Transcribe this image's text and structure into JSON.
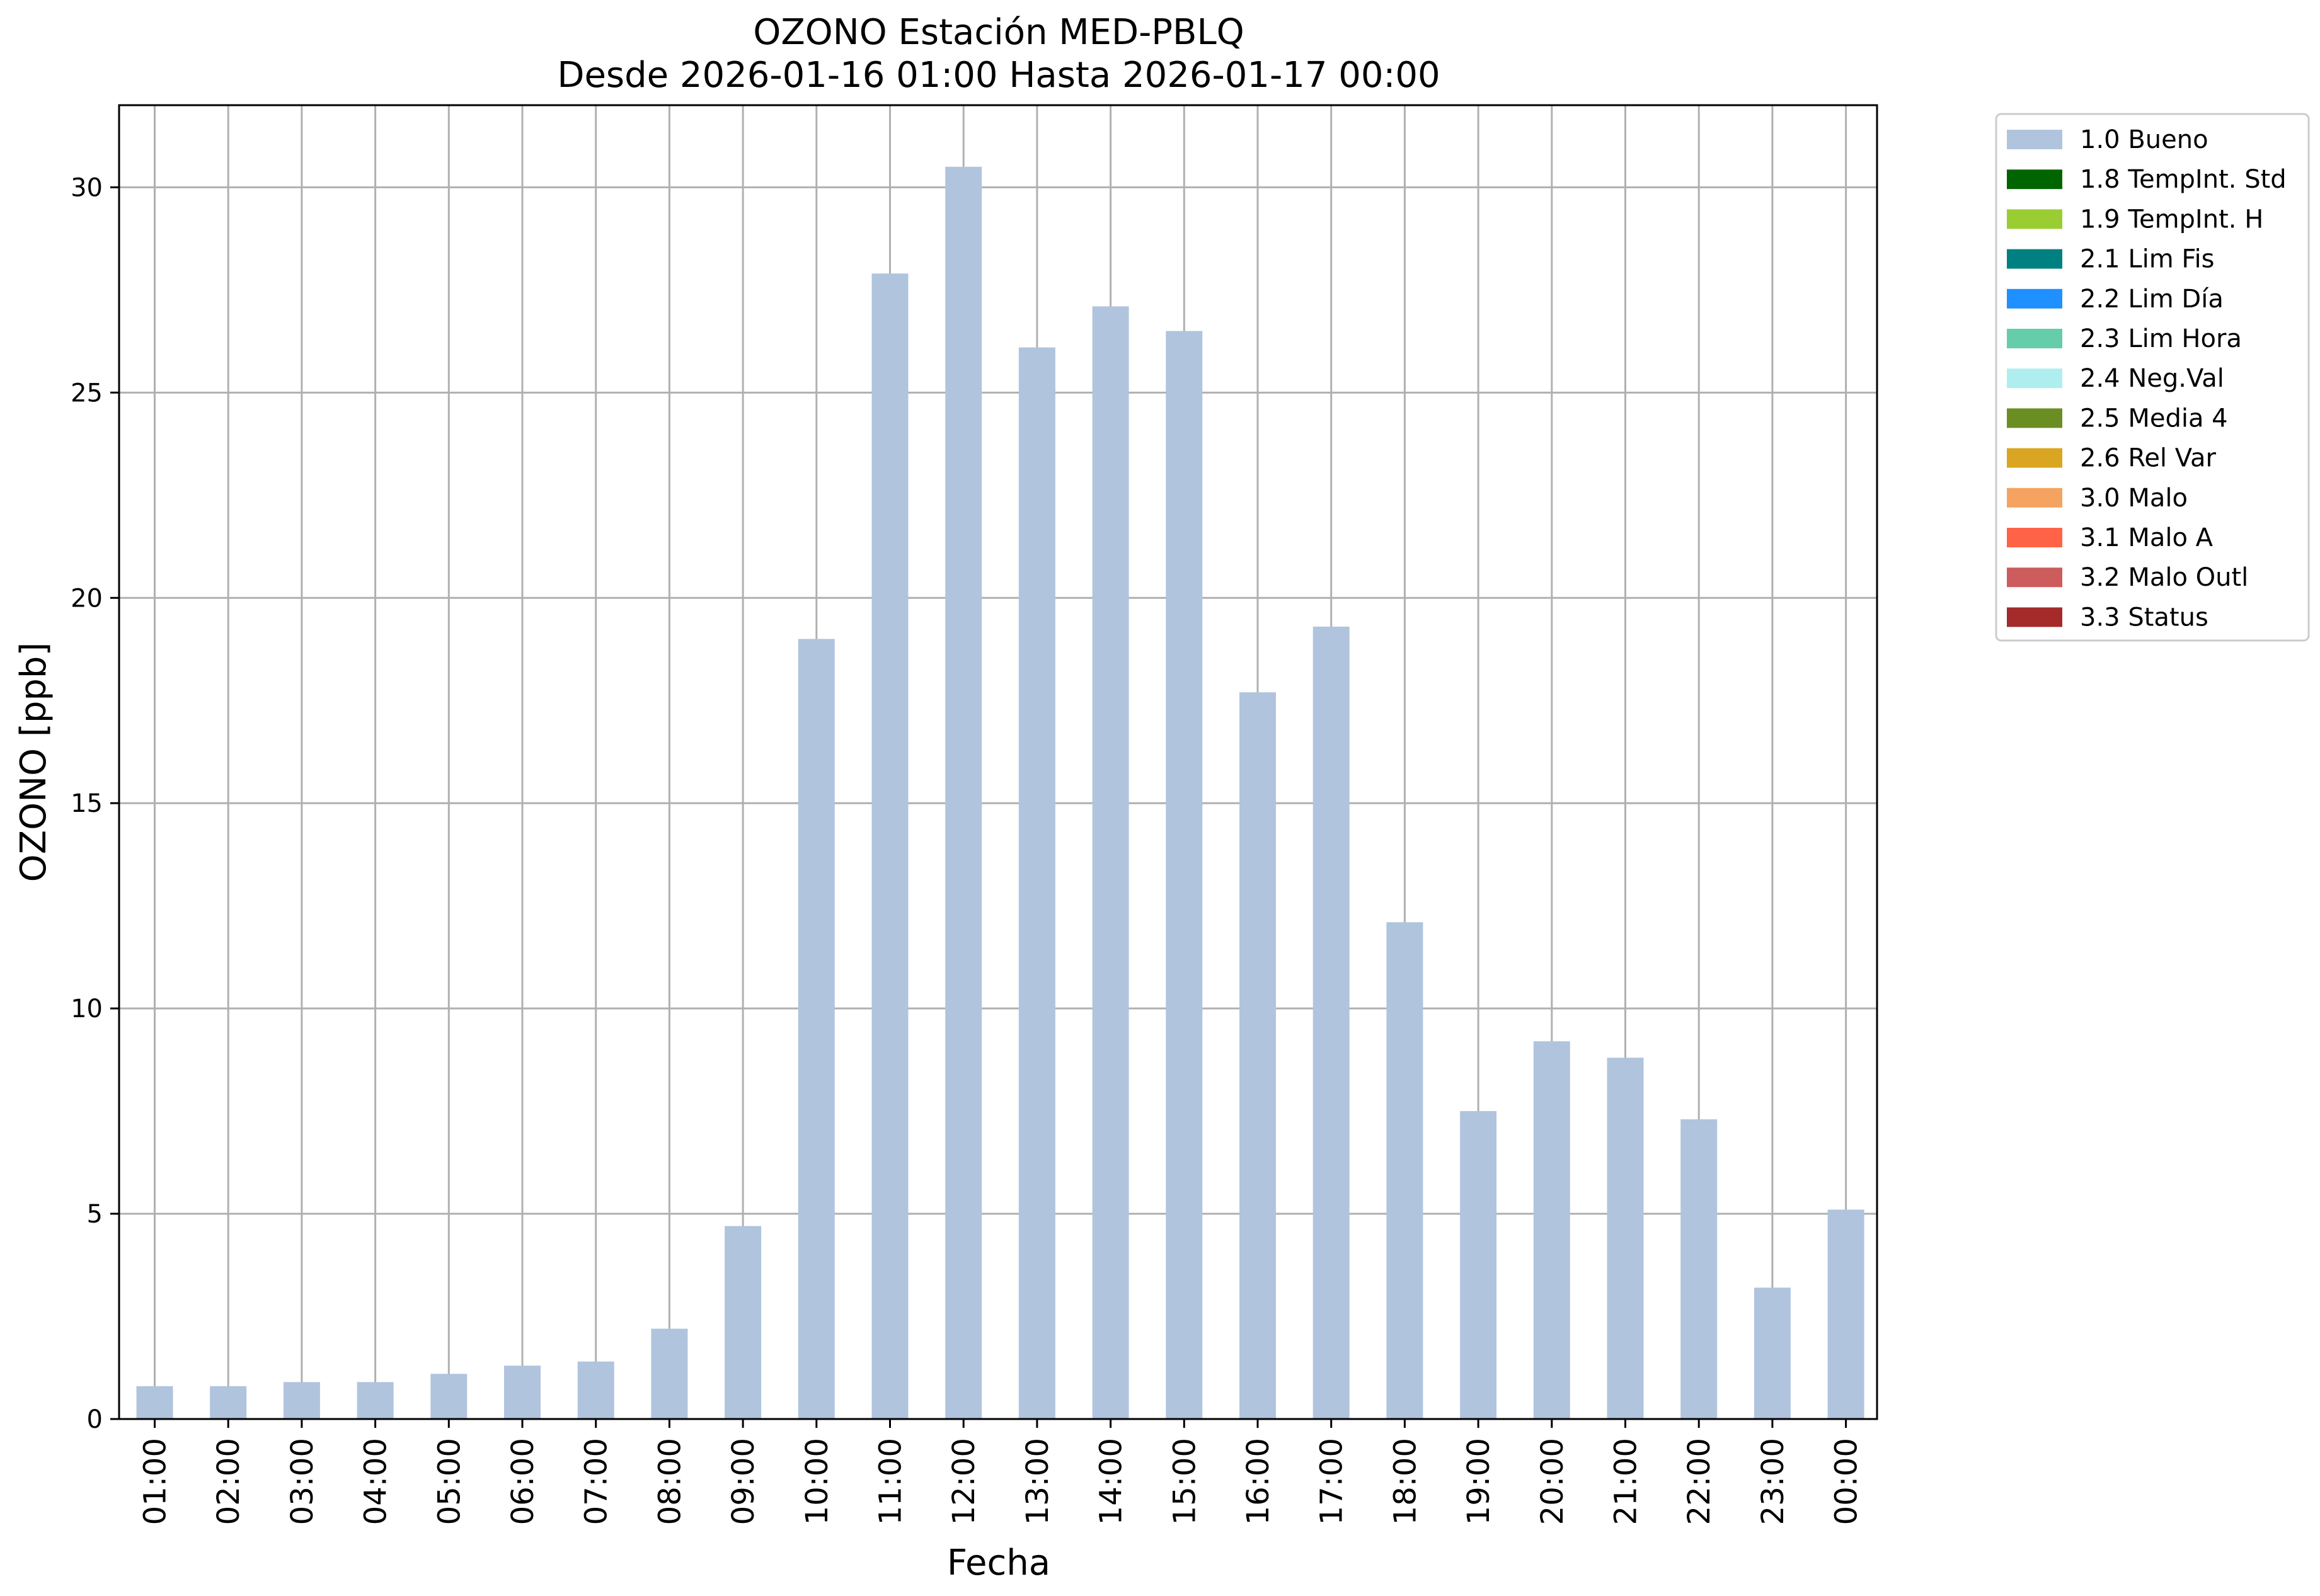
{
  "chart_data": {
    "type": "bar",
    "title": "OZONO Estación MED-PBLQ",
    "subtitle": "Desde 2026-01-16 01:00 Hasta 2026-01-17 00:00",
    "xlabel": "Fecha",
    "ylabel": "OZONO [ppb]",
    "ylim": [
      0,
      32
    ],
    "yticks": [
      "0",
      "5",
      "10",
      "15",
      "20",
      "25",
      "30"
    ],
    "grid": true,
    "legend_position": "outside-top-right",
    "categories": [
      "01:00",
      "02:00",
      "03:00",
      "04:00",
      "05:00",
      "06:00",
      "07:00",
      "08:00",
      "09:00",
      "10:00",
      "11:00",
      "12:00",
      "13:00",
      "14:00",
      "15:00",
      "16:00",
      "17:00",
      "18:00",
      "19:00",
      "20:00",
      "21:00",
      "22:00",
      "23:00",
      "00:00"
    ],
    "series": [
      {
        "name": "1.0 Bueno",
        "color": "#b0c4de",
        "values": [
          0.8,
          0.8,
          0.9,
          0.9,
          1.1,
          1.3,
          1.4,
          2.2,
          4.7,
          19.0,
          27.9,
          30.5,
          26.1,
          27.1,
          26.5,
          17.7,
          19.3,
          12.1,
          7.5,
          9.2,
          8.8,
          7.3,
          3.2,
          5.1
        ]
      }
    ],
    "legend": [
      {
        "label": "1.0 Bueno",
        "color": "#b0c4de"
      },
      {
        "label": "1.8 TempInt. Std",
        "color": "#006400"
      },
      {
        "label": "1.9 TempInt. H",
        "color": "#9acd32"
      },
      {
        "label": "2.1 Lim Fis",
        "color": "#008080"
      },
      {
        "label": "2.2 Lim Día",
        "color": "#1e90ff"
      },
      {
        "label": "2.3 Lim Hora",
        "color": "#66cdaa"
      },
      {
        "label": "2.4 Neg.Val",
        "color": "#afeeee"
      },
      {
        "label": "2.5 Media 4",
        "color": "#6b8e23"
      },
      {
        "label": "2.6 Rel Var",
        "color": "#daa520"
      },
      {
        "label": "3.0 Malo",
        "color": "#f4a460"
      },
      {
        "label": "3.1 Malo A",
        "color": "#ff6347"
      },
      {
        "label": "3.2 Malo Outl",
        "color": "#cd5c5c"
      },
      {
        "label": "3.3 Status",
        "color": "#a52a2a"
      }
    ]
  }
}
